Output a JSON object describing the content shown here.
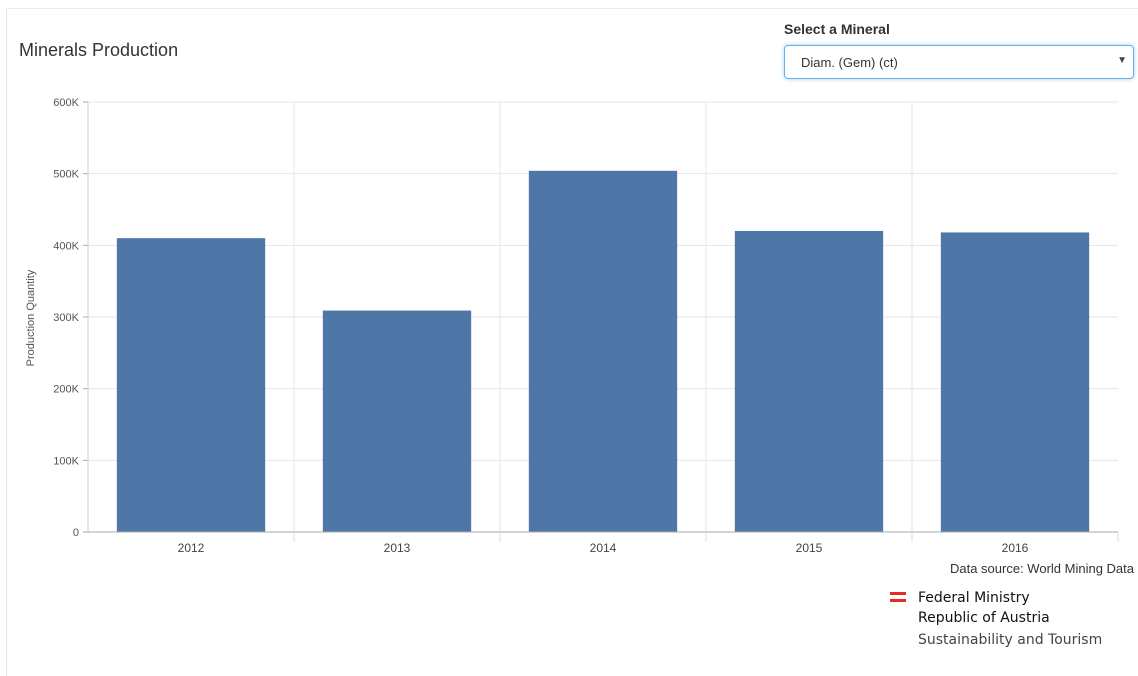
{
  "title": "Minerals Production",
  "selector": {
    "label": "Select a Mineral",
    "value": "Diam. (Gem) (ct)"
  },
  "source": "Data source: World Mining Data",
  "logo": {
    "line1": "Federal Ministry",
    "line2": "Republic of Austria",
    "line3": "Sustainability and Tourism",
    "color": "#e42e24"
  },
  "chart_data": {
    "type": "bar",
    "title": "",
    "xlabel": "",
    "ylabel": "Production Quantity",
    "categories": [
      "2012",
      "2013",
      "2014",
      "2015",
      "2016"
    ],
    "values": [
      410000,
      309000,
      504000,
      420000,
      418000
    ],
    "ylim": [
      0,
      600000
    ],
    "yticks": [
      0,
      100000,
      200000,
      300000,
      400000,
      500000,
      600000
    ],
    "ytick_labels": [
      "0",
      "100K",
      "200K",
      "300K",
      "400K",
      "500K",
      "600K"
    ],
    "bar_color": "#4e76a7",
    "grid": true,
    "legend": "none"
  }
}
